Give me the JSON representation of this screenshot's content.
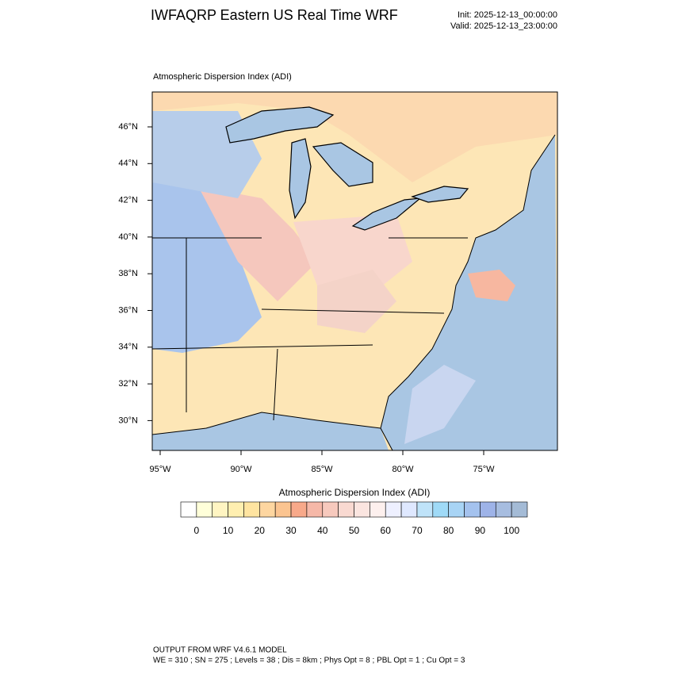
{
  "header": {
    "title": "IWFAQRP Eastern US Real Time WRF",
    "init": "Init: 2025-12-13_00:00:00",
    "valid": "Valid: 2025-12-13_23:00:00"
  },
  "map": {
    "label": "Atmospheric Dispersion Index   (ADI)",
    "lat_labels": [
      "46°N",
      "44°N",
      "42°N",
      "40°N",
      "38°N",
      "36°N",
      "34°N",
      "32°N",
      "30°N"
    ],
    "lon_labels": [
      "95°W",
      "90°W",
      "85°W",
      "80°W",
      "75°W"
    ]
  },
  "colorbar": {
    "title": "Atmospheric Dispersion Index  (ADI)",
    "labels": [
      "0",
      "10",
      "20",
      "30",
      "40",
      "50",
      "60",
      "70",
      "80",
      "90",
      "100"
    ],
    "colors": [
      "#ffffff",
      "#ffffd9",
      "#fff5c2",
      "#ffefb0",
      "#ffe4a0",
      "#fed6a0",
      "#fbc490",
      "#f8a98a",
      "#f6b8a8",
      "#f7c9bd",
      "#f9d9d1",
      "#fbe5e0",
      "#fdf0ee",
      "#eef0ff",
      "#dfe8ff",
      "#bfe3f9",
      "#9fdaf7",
      "#a8d4f5",
      "#a4c2ee",
      "#9eb3e8",
      "#a7bde0",
      "#a4bbd6"
    ]
  },
  "footer": {
    "line1": "OUTPUT FROM WRF V4.6.1 MODEL",
    "line2": "WE = 310 ; SN = 275 ; Levels = 38 ; Dis = 8km ; Phys Opt = 8 ; PBL Opt = 1 ; Cu Opt = 3"
  }
}
